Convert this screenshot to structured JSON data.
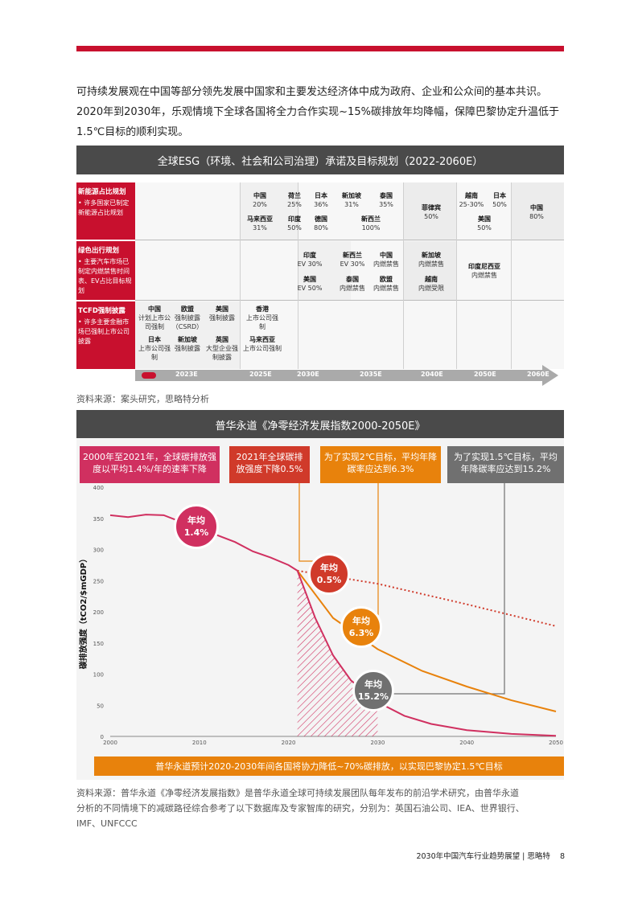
{
  "intro": {
    "line1": "可持续发展观在中国等部分领先发展中国家和主要发达经济体中成为政府、企业和公众间的基本共识。",
    "line2": "2020年到2030年，乐观情境下全球各国将全力合作实现~15%碳排放年均降幅，保障巴黎协定升温低于",
    "line3": "1.5℃目标的顺利实现。"
  },
  "esg": {
    "title": "全球ESG（环境、社会和公司治理）承诺及目标规划（2022-2060E）",
    "rows": [
      {
        "head": "新能源占比规划",
        "desc": "• 许多国家已制定新能源占比规划"
      },
      {
        "head": "绿色出行规划",
        "desc": "• 主要汽车市场已制定内燃禁售时间表、EV占比目标规划"
      },
      {
        "head": "TCFD强制披露",
        "desc": "• 许多主要金融市场已强制上市公司披露"
      }
    ],
    "row1_items": [
      {
        "name": "中国",
        "val": "20%"
      },
      {
        "name": "马来西亚",
        "val": "31%"
      },
      {
        "name": "荷兰",
        "val": "25%"
      },
      {
        "name": "日本",
        "val": "36%"
      },
      {
        "name": "印度",
        "val": "50%"
      },
      {
        "name": "德国",
        "val": "80%"
      },
      {
        "name": "新加坡",
        "val": "31%"
      },
      {
        "name": "泰国",
        "val": "35%"
      },
      {
        "name": "新西兰",
        "val": "100%"
      },
      {
        "name": "菲律宾",
        "val": "50%"
      },
      {
        "name": "越南",
        "val": "25-30%"
      },
      {
        "name": "日本",
        "val": "50%"
      },
      {
        "name": "美国",
        "val": "50%"
      },
      {
        "name": "中国",
        "val": "80%"
      }
    ],
    "row2_items": [
      {
        "name": "印度",
        "val": "EV 30%"
      },
      {
        "name": "美国",
        "val": "EV 50%"
      },
      {
        "name": "新西兰",
        "val": "EV 30%"
      },
      {
        "name": "中国",
        "val": "内燃禁售"
      },
      {
        "name": "泰国",
        "val": "内燃禁售"
      },
      {
        "name": "欧盟",
        "val": "内燃禁售"
      },
      {
        "name": "新加坡",
        "val": "内燃禁售"
      },
      {
        "name": "越南",
        "val": "内燃受限"
      },
      {
        "name": "印度尼西亚",
        "val": "内燃禁售"
      }
    ],
    "row3_items": [
      {
        "name": "中国",
        "val": "计划上市公司强制"
      },
      {
        "name": "欧盟",
        "val": "强制披露（CSRD）"
      },
      {
        "name": "美国",
        "val": "强制披露"
      },
      {
        "name": "日本",
        "val": "上市公司强制"
      },
      {
        "name": "新加坡",
        "val": "强制披露"
      },
      {
        "name": "英国",
        "val": "大型企业强制披露"
      },
      {
        "name": "香港",
        "val": "上市公司强制"
      },
      {
        "name": "马来西亚",
        "val": "上市公司强制"
      }
    ],
    "timeline": [
      "2023E",
      "2025E",
      "2030E",
      "2035E",
      "2040E",
      "2050E",
      "2060E"
    ],
    "source": "资料来源：案头研究，思略特分析"
  },
  "chart": {
    "title": "普华永道《净零经济发展指数2000-2050E》",
    "callouts": [
      "2000年至2021年，全球碳排放强度以平均1.4%/年的速率下降",
      "2021年全球碳排放强度下降0.5%",
      "为了实现2℃目标，平均年降碳率应达到6.3%",
      "为了实现1.5℃目标，平均年降碳率应达到15.2%"
    ],
    "circles": [
      {
        "top": "年均",
        "bottom": "1.4%"
      },
      {
        "top": "年均",
        "bottom": "0.5%"
      },
      {
        "top": "年均",
        "bottom": "6.3%"
      },
      {
        "top": "年均",
        "bottom": "15.2%"
      }
    ],
    "bottom_note": "普华永道预计2020-2030年间各国将协力降低~70%碳排放，以实现巴黎协定1.5℃目标",
    "colors": {
      "red": "#c8102e",
      "crimson": "#d03060",
      "orange": "#e8820c",
      "grey": "#707070"
    }
  },
  "chart_data": {
    "type": "line",
    "ylabel": "碳排放强度（tCO2/$mGDP）",
    "ylim": [
      0,
      400
    ],
    "xlim": [
      2000,
      2050
    ],
    "yticks": [
      0,
      50,
      100,
      150,
      200,
      250,
      300,
      350,
      400
    ],
    "xticks": [
      2000,
      2010,
      2020,
      2030,
      2040,
      2050
    ],
    "series": [
      {
        "name": "history",
        "x": [
          2000,
          2002,
          2004,
          2006,
          2008,
          2010,
          2012,
          2014,
          2016,
          2018,
          2020,
          2021
        ],
        "y": [
          355,
          352,
          356,
          355,
          344,
          340,
          323,
          312,
          297,
          287,
          275,
          266
        ]
      },
      {
        "name": "0.5%",
        "x": [
          2021,
          2030,
          2040,
          2050
        ],
        "y": [
          266,
          245,
          212,
          177
        ]
      },
      {
        "name": "6.3%",
        "x": [
          2021,
          2025,
          2030,
          2035,
          2040,
          2045,
          2050
        ],
        "y": [
          266,
          190,
          140,
          105,
          80,
          58,
          40
        ]
      },
      {
        "name": "15.2%",
        "x": [
          2021,
          2023,
          2025,
          2027,
          2030,
          2033,
          2036,
          2040,
          2045,
          2050
        ],
        "y": [
          266,
          190,
          130,
          90,
          55,
          33,
          20,
          10,
          4,
          1
        ]
      }
    ]
  },
  "source2": {
    "line1": "资料来源：普华永道《净零经济发展指数》是普华永道全球可持续发展团队每年发布的前沿学术研究，由普华永道",
    "line2": "分析的不同情境下的减碳路径综合参考了以下数据库及专家智库的研究，分别为：英国石油公司、IEA、世界银行、",
    "line3": "IMF、UNFCCC"
  },
  "footer": {
    "text": "2030年中国汽车行业趋势展望 | 思略特",
    "page": "8"
  }
}
